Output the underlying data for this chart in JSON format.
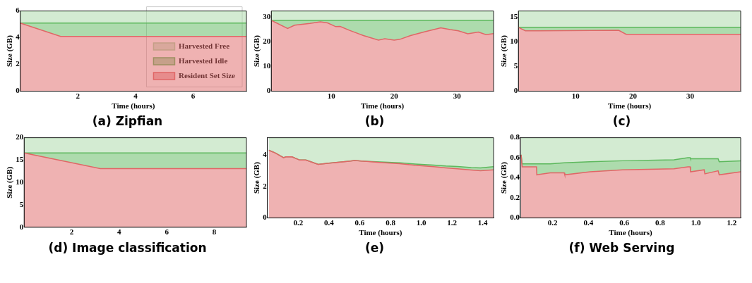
{
  "chart_data": [
    {
      "type": "area",
      "title": "(a) Zipfian",
      "xlabel": "Time (hours)",
      "ylabel": "Size (GB)",
      "stacked": true,
      "legend": "bottom right",
      "grid": false,
      "xlim": [
        0,
        7.85
      ],
      "xticks": [
        2,
        4,
        6
      ],
      "ylim": [
        0,
        6
      ],
      "yticks": [
        0,
        2,
        4,
        6
      ],
      "x": [
        0,
        1.4,
        7.85
      ],
      "series": [
        {
          "name": "Resident Set Size",
          "color": "#e06666",
          "values": [
            5.1,
            4.1,
            4.1
          ]
        },
        {
          "name": "Harvested Idle",
          "color": "#5cb85c",
          "values": [
            0,
            1.0,
            1.0
          ]
        },
        {
          "name": "Harvested Free",
          "color": "#a8d8a6",
          "values": [
            0.9,
            0.9,
            0.9
          ]
        }
      ]
    },
    {
      "type": "area",
      "title": "(b)",
      "xlabel": "Time (hours)",
      "ylabel": "Size (GB)",
      "stacked": true,
      "grid": false,
      "xlim": [
        0.45,
        35.8
      ],
      "xticks": [
        10,
        20,
        30
      ],
      "ylim": [
        0,
        32.3
      ],
      "yticks": [
        0,
        10,
        20,
        30
      ],
      "x": [
        0.45,
        3.05,
        4.16,
        6.6,
        8.25,
        9.4,
        10.7,
        11.4,
        12.9,
        15.1,
        17.5,
        18.5,
        20.0,
        20.9,
        22.6,
        24.8,
        27.4,
        28.9,
        30.2,
        31.7,
        33.4,
        34.6,
        35.8
      ],
      "series": [
        {
          "color": "#e06666",
          "values": [
            28.5,
            25.3,
            26.6,
            27.3,
            27.9,
            27.5,
            26.0,
            26.1,
            24.5,
            22.4,
            20.6,
            21.1,
            20.6,
            20.9,
            22.4,
            23.9,
            25.5,
            24.8,
            24.3,
            23.1,
            23.8,
            22.8,
            23.2
          ]
        },
        {
          "color": "#5cb85c",
          "values": [
            0,
            3.2,
            1.9,
            1.2,
            0.6,
            1.0,
            2.5,
            2.4,
            4.0,
            6.1,
            7.9,
            7.4,
            7.9,
            7.6,
            6.1,
            4.6,
            3.0,
            3.7,
            4.2,
            5.4,
            4.7,
            5.7,
            5.3
          ]
        },
        {
          "color": "#a8d8a6",
          "values": [
            3.8,
            3.8,
            3.8,
            3.8,
            3.8,
            3.8,
            3.8,
            3.8,
            3.8,
            3.8,
            3.8,
            3.8,
            3.8,
            3.8,
            3.8,
            3.8,
            3.8,
            3.8,
            3.8,
            3.8,
            3.8,
            3.8,
            3.8
          ]
        }
      ]
    },
    {
      "type": "area",
      "title": "(c)",
      "xlabel": "Time (hours)",
      "ylabel": "Size (GB)",
      "stacked": true,
      "grid": false,
      "xlim": [
        0,
        38.8
      ],
      "xticks": [
        10,
        20,
        30
      ],
      "ylim": [
        0,
        16.2
      ],
      "yticks": [
        0,
        5,
        10,
        15
      ],
      "x": [
        0,
        1.2,
        17.5,
        18.8,
        38.8
      ],
      "series": [
        {
          "color": "#e06666",
          "values": [
            12.9,
            12.2,
            12.3,
            11.5,
            11.5
          ]
        },
        {
          "color": "#5cb85c",
          "values": [
            0,
            0.7,
            0.6,
            1.4,
            1.4
          ]
        },
        {
          "color": "#a8d8a6",
          "values": [
            3.3,
            3.3,
            3.3,
            3.3,
            3.3
          ]
        }
      ]
    },
    {
      "type": "area",
      "title": "(d) Image classification",
      "ylabel": "Size (GB)",
      "stacked": true,
      "grid": false,
      "xlim": [
        0,
        9.35
      ],
      "xticks": [
        2,
        4,
        6,
        8
      ],
      "ylim": [
        0,
        20
      ],
      "yticks": [
        0,
        5,
        10,
        15,
        20
      ],
      "x": [
        0,
        3.2,
        9.35
      ],
      "series": [
        {
          "color": "#e06666",
          "values": [
            16.6,
            13.1,
            13.1
          ]
        },
        {
          "color": "#5cb85c",
          "values": [
            0,
            3.5,
            3.5
          ]
        },
        {
          "color": "#a8d8a6",
          "values": [
            3.4,
            3.4,
            3.4
          ]
        }
      ]
    },
    {
      "type": "area",
      "title": "(e)",
      "xlabel": "Time (hours)",
      "ylabel": "Size (GB)",
      "stacked": true,
      "grid": false,
      "xlim": [
        0,
        1.47
      ],
      "xticks": [
        0.2,
        0.4,
        0.6,
        0.8,
        {
          "value": 1,
          "label": "1.0"
        },
        1.2,
        1.4
      ],
      "ylim": [
        0,
        5.1
      ],
      "yticks": [
        0,
        2,
        4
      ],
      "x": [
        0.01,
        0.05,
        0.105,
        0.12,
        0.16,
        0.21,
        0.25,
        0.33,
        0.4,
        0.53,
        0.565,
        0.63,
        0.73,
        0.86,
        0.96,
        1.08,
        1.16,
        1.235,
        1.325,
        1.385,
        1.47
      ],
      "series": [
        {
          "color": "#e06666",
          "values": [
            4.3,
            4.14,
            3.83,
            3.88,
            3.88,
            3.68,
            3.68,
            3.41,
            3.48,
            3.61,
            3.65,
            3.61,
            3.53,
            3.45,
            3.35,
            3.26,
            3.18,
            3.12,
            3.05,
            3.0,
            3.06
          ]
        },
        {
          "color": "#5cb85c",
          "values": [
            0,
            0,
            0,
            0,
            0,
            0,
            0,
            0,
            0,
            0,
            0,
            0,
            0.03,
            0.05,
            0.08,
            0.1,
            0.12,
            0.15,
            0.15,
            0.18,
            0.2
          ]
        },
        {
          "color": "#a8d8a6",
          "values": [
            0.8,
            0.96,
            1.27,
            1.22,
            1.22,
            1.42,
            1.42,
            1.69,
            1.62,
            1.49,
            1.45,
            1.49,
            1.54,
            1.6,
            1.67,
            1.74,
            1.8,
            1.83,
            1.9,
            1.92,
            1.84
          ]
        }
      ]
    },
    {
      "type": "area",
      "title": "(f) Web Serving",
      "xlabel": "Time (hours)",
      "ylabel": "Size (GB)",
      "stacked": true,
      "grid": false,
      "xlim": [
        0.02,
        1.25
      ],
      "xticks": [
        0.2,
        0.4,
        0.6,
        0.8,
        {
          "value": 1,
          "label": "1.0"
        },
        1.2
      ],
      "ylim": [
        0,
        0.8
      ],
      "yticks": [
        {
          "value": 0,
          "label": "0.0"
        },
        0.2,
        0.4,
        0.6,
        0.8
      ],
      "x": [
        0.024,
        0.03,
        0.11,
        0.112,
        0.187,
        0.265,
        0.268,
        0.41,
        0.59,
        0.878,
        0.955,
        0.968,
        0.97,
        1.046,
        1.05,
        1.124,
        1.13,
        1.25
      ],
      "series": [
        {
          "color": "#e06666",
          "values": [
            0.63,
            0.51,
            0.51,
            0.43,
            0.45,
            0.45,
            0.43,
            0.46,
            0.48,
            0.49,
            0.51,
            0.51,
            0.46,
            0.48,
            0.44,
            0.47,
            0.43,
            0.46
          ]
        },
        {
          "color": "#5cb85c",
          "values": [
            0,
            0.03,
            0.03,
            0.11,
            0.09,
            0.1,
            0.12,
            0.1,
            0.09,
            0.09,
            0.09,
            0.09,
            0.13,
            0.11,
            0.15,
            0.12,
            0.13,
            0.11
          ]
        },
        {
          "color": "#a8d8a6",
          "values": [
            0.17,
            0.26,
            0.26,
            0.26,
            0.26,
            0.25,
            0.25,
            0.24,
            0.23,
            0.22,
            0.2,
            0.2,
            0.21,
            0.21,
            0.21,
            0.21,
            0.24,
            0.23
          ]
        }
      ]
    }
  ]
}
